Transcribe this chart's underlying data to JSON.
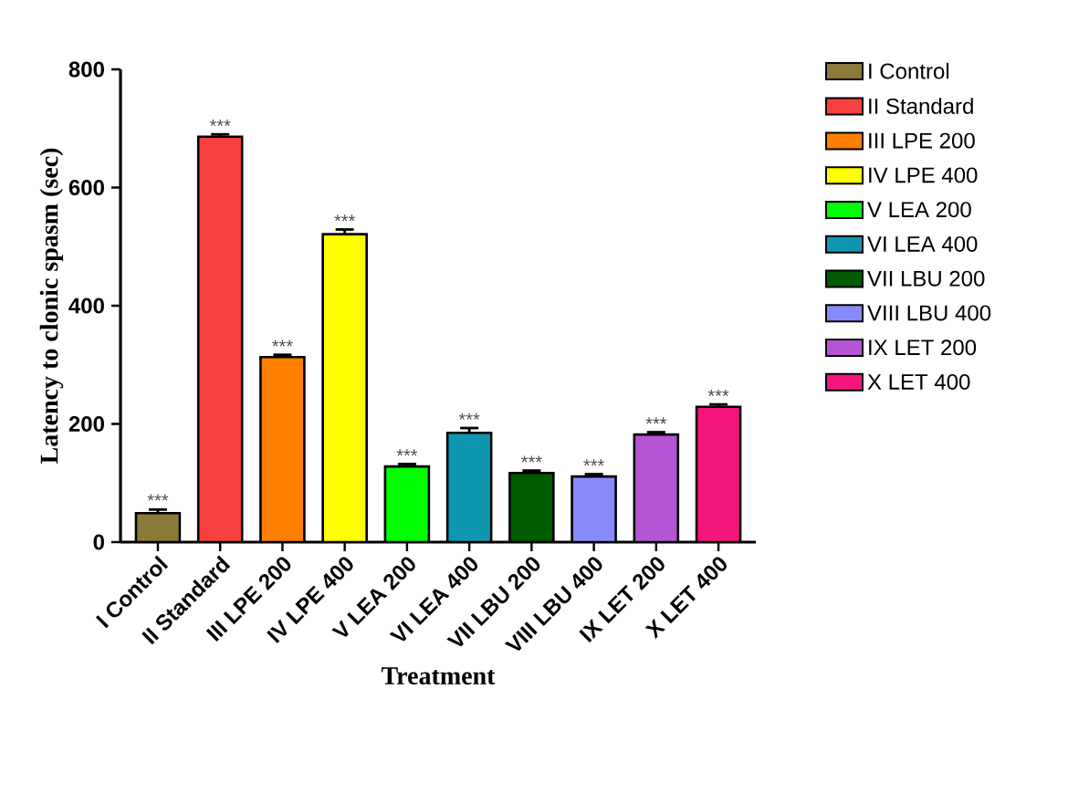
{
  "chart_data": {
    "type": "bar",
    "xlabel": "Treatment",
    "ylabel": "Latency to clonic spasm (sec)",
    "categories": [
      "I Control",
      "II Standard",
      "III LPE 200",
      "IV LPE 400",
      "V LEA 200",
      "VI LEA 400",
      "VII LBU 200",
      "VIII LBU 400",
      "IX LET 200",
      "X LET 400"
    ],
    "series": [
      {
        "name": "I Control",
        "color": "#8b7a3a",
        "values": [
          49,
          null,
          null,
          null,
          null,
          null,
          null,
          null,
          null,
          null
        ],
        "errors": [
          6,
          null,
          null,
          null,
          null,
          null,
          null,
          null,
          null,
          null
        ]
      },
      {
        "name": "II Standard",
        "color": "#f94040",
        "values": [
          null,
          686,
          null,
          null,
          null,
          null,
          null,
          null,
          null,
          null
        ],
        "errors": [
          null,
          4,
          null,
          null,
          null,
          null,
          null,
          null,
          null,
          null
        ]
      },
      {
        "name": "III LPE 200",
        "color": "#ff7f00",
        "values": [
          null,
          null,
          313,
          null,
          null,
          null,
          null,
          null,
          null,
          null
        ],
        "errors": [
          null,
          null,
          4,
          null,
          null,
          null,
          null,
          null,
          null,
          null
        ]
      },
      {
        "name": "IV LPE 400",
        "color": "#ffff00",
        "values": [
          null,
          null,
          null,
          521,
          null,
          null,
          null,
          null,
          null,
          null
        ],
        "errors": [
          null,
          null,
          null,
          8,
          null,
          null,
          null,
          null,
          null,
          null
        ]
      },
      {
        "name": "V LEA 200",
        "color": "#00ff00",
        "values": [
          null,
          null,
          null,
          null,
          128,
          null,
          null,
          null,
          null,
          null
        ],
        "errors": [
          null,
          null,
          null,
          null,
          4,
          null,
          null,
          null,
          null,
          null
        ]
      },
      {
        "name": "VI LEA 400",
        "color": "#1097b0",
        "values": [
          null,
          null,
          null,
          null,
          null,
          185,
          null,
          null,
          null,
          null
        ],
        "errors": [
          null,
          null,
          null,
          null,
          null,
          8,
          null,
          null,
          null,
          null
        ]
      },
      {
        "name": "VII LBU 200",
        "color": "#005a00",
        "values": [
          null,
          null,
          null,
          null,
          null,
          null,
          117,
          null,
          null,
          null
        ],
        "errors": [
          null,
          null,
          null,
          null,
          null,
          null,
          4,
          null,
          null,
          null
        ]
      },
      {
        "name": "VIII LBU 400",
        "color": "#8a8aff",
        "values": [
          null,
          null,
          null,
          null,
          null,
          null,
          null,
          111,
          null,
          null
        ],
        "errors": [
          null,
          null,
          null,
          null,
          null,
          null,
          null,
          4,
          null,
          null
        ]
      },
      {
        "name": "IX LET 200",
        "color": "#b455d6",
        "values": [
          null,
          null,
          null,
          null,
          null,
          null,
          null,
          null,
          182,
          null
        ],
        "errors": [
          null,
          null,
          null,
          null,
          null,
          null,
          null,
          null,
          4,
          null
        ]
      },
      {
        "name": "X LET 400",
        "color": "#f5167d",
        "values": [
          null,
          null,
          null,
          null,
          null,
          null,
          null,
          null,
          null,
          229
        ],
        "errors": [
          null,
          null,
          null,
          null,
          null,
          null,
          null,
          null,
          null,
          4
        ]
      }
    ],
    "annotations": [
      {
        "text": "***",
        "x": "I Control",
        "y": 56
      },
      {
        "text": "***",
        "x": "II Standard",
        "y": 690
      },
      {
        "text": "***",
        "x": "III LPE 200",
        "y": 317
      },
      {
        "text": "***",
        "x": "IV LPE 400",
        "y": 529
      },
      {
        "text": "***",
        "x": "V LEA 200",
        "y": 132
      },
      {
        "text": "***",
        "x": "VI LEA 400",
        "y": 193
      },
      {
        "text": "***",
        "x": "VII LBU 200",
        "y": 121
      },
      {
        "text": "***",
        "x": "VIII LBU 400",
        "y": 115
      },
      {
        "text": "***",
        "x": "IX LET 200",
        "y": 186
      },
      {
        "text": "***",
        "x": "X LET 400",
        "y": 233
      }
    ],
    "ylim": [
      0,
      800
    ],
    "yticks": [
      0,
      200,
      400,
      600,
      800
    ],
    "legend": "right"
  }
}
